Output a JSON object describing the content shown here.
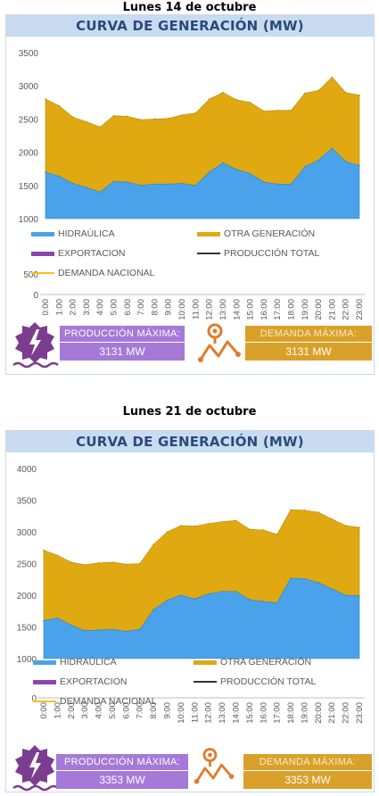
{
  "sections": [
    {
      "date": "Lunes 14 de octubre",
      "title": "CURVA DE GENERACIÓN (MW)",
      "prod_label": "PRODUCCIÓN MÁXIMA:",
      "prod_value": "3131 MW",
      "dem_label": "DEMANDA MÁXIMA:",
      "dem_value": "3131 MW"
    },
    {
      "date": "Lunes 21 de octubre",
      "title": "CURVA DE GENERACIÓN (MW)",
      "prod_label": "PRODUCCIÓN MÁXIMA:",
      "prod_value": "3353 MW",
      "dem_label": "DEMANDA MÁXIMA:",
      "dem_value": "3353 MW"
    }
  ],
  "colors": {
    "hidraulica": "#4aa3ea",
    "otra": "#e0a911",
    "exportacion": "#8e44ad",
    "produccion_total": "#333333",
    "demanda": "#f2c21b",
    "title_bg": "#c9dbf0",
    "title_text": "#2b4a7a",
    "prod_box": "#a579d8",
    "dem_box": "#d9a12a",
    "icon_purple": "#7a3d8f",
    "icon_orange": "#e07b2b"
  },
  "chart_data": [
    {
      "type": "area",
      "title": "CURVA DE GENERACIÓN (MW)",
      "x": [
        "0:00",
        "1:00",
        "2:00",
        "3:00",
        "4:00",
        "5:00",
        "6:00",
        "7:00",
        "8:00",
        "9:00",
        "10:00",
        "11:00",
        "12:00",
        "13:00",
        "14:00",
        "15:00",
        "16:00",
        "17:00",
        "18:00",
        "19:00",
        "20:00",
        "21:00",
        "22:00",
        "23:00"
      ],
      "ylim": [
        0,
        3500
      ],
      "yticks": [
        0,
        500,
        1000,
        1500,
        2000,
        2500,
        3000,
        3500
      ],
      "axis_break": true,
      "stacked": true,
      "series": [
        {
          "name": "HIDRAÚLICA",
          "values": [
            1700,
            1640,
            1530,
            1470,
            1400,
            1560,
            1550,
            1500,
            1520,
            1520,
            1530,
            1500,
            1700,
            1840,
            1740,
            1680,
            1550,
            1520,
            1520,
            1780,
            1880,
            2060,
            1860,
            1800
          ]
        },
        {
          "name": "OTRA GENERACIÓN",
          "values": [
            1100,
            1060,
            1000,
            990,
            980,
            990,
            990,
            990,
            980,
            990,
            1030,
            1090,
            1100,
            1060,
            1050,
            1070,
            1070,
            1110,
            1110,
            1110,
            1050,
            1070,
            1040,
            1060
          ]
        }
      ],
      "lines": [
        {
          "name": "EXPORTACION",
          "values": []
        },
        {
          "name": "PRODUCCIÓN TOTAL",
          "values": []
        },
        {
          "name": "DEMANDA NACIONAL",
          "values": []
        }
      ],
      "legend": [
        "HIDRAÚLICA",
        "OTRA GENERACIÓN",
        "EXPORTACION",
        "PRODUCCIÓN TOTAL",
        "DEMANDA NACIONAL"
      ],
      "legend_position": "bottom"
    },
    {
      "type": "area",
      "title": "CURVA DE GENERACIÓN (MW)",
      "x": [
        "0:00",
        "1:00",
        "2:00",
        "3:00",
        "4:00",
        "5:00",
        "6:00",
        "7:00",
        "8:00",
        "9:00",
        "10:00",
        "11:00",
        "12:00",
        "13:00",
        "14:00",
        "15:00",
        "16:00",
        "17:00",
        "18:00",
        "19:00",
        "20:00",
        "21:00",
        "22:00",
        "23:00"
      ],
      "ylim": [
        0,
        4000
      ],
      "yticks": [
        0,
        1000,
        1500,
        2000,
        2500,
        3000,
        3500,
        4000
      ],
      "axis_break": true,
      "stacked": true,
      "series": [
        {
          "name": "HIDRAÚLICA",
          "values": [
            1600,
            1640,
            1530,
            1440,
            1450,
            1460,
            1430,
            1460,
            1770,
            1920,
            2000,
            1940,
            2020,
            2060,
            2060,
            1930,
            1900,
            1880,
            2270,
            2260,
            2200,
            2100,
            2000,
            1990
          ]
        },
        {
          "name": "OTRA GENERACIÓN",
          "values": [
            1110,
            990,
            990,
            1040,
            1060,
            1060,
            1060,
            1040,
            1030,
            1080,
            1100,
            1150,
            1110,
            1100,
            1120,
            1110,
            1130,
            1080,
            1080,
            1080,
            1110,
            1100,
            1100,
            1080
          ]
        }
      ],
      "lines": [
        {
          "name": "EXPORTACION",
          "values": []
        },
        {
          "name": "PRODUCCIÓN TOTAL",
          "values": []
        },
        {
          "name": "DEMANDA NACIONAL",
          "values": []
        }
      ],
      "legend": [
        "HIDRAÚLICA",
        "OTRA GENERACIÓN",
        "EXPORTACION",
        "PRODUCCIÓN TOTAL",
        "DEMANDA NACIONAL"
      ],
      "legend_position": "bottom"
    }
  ]
}
